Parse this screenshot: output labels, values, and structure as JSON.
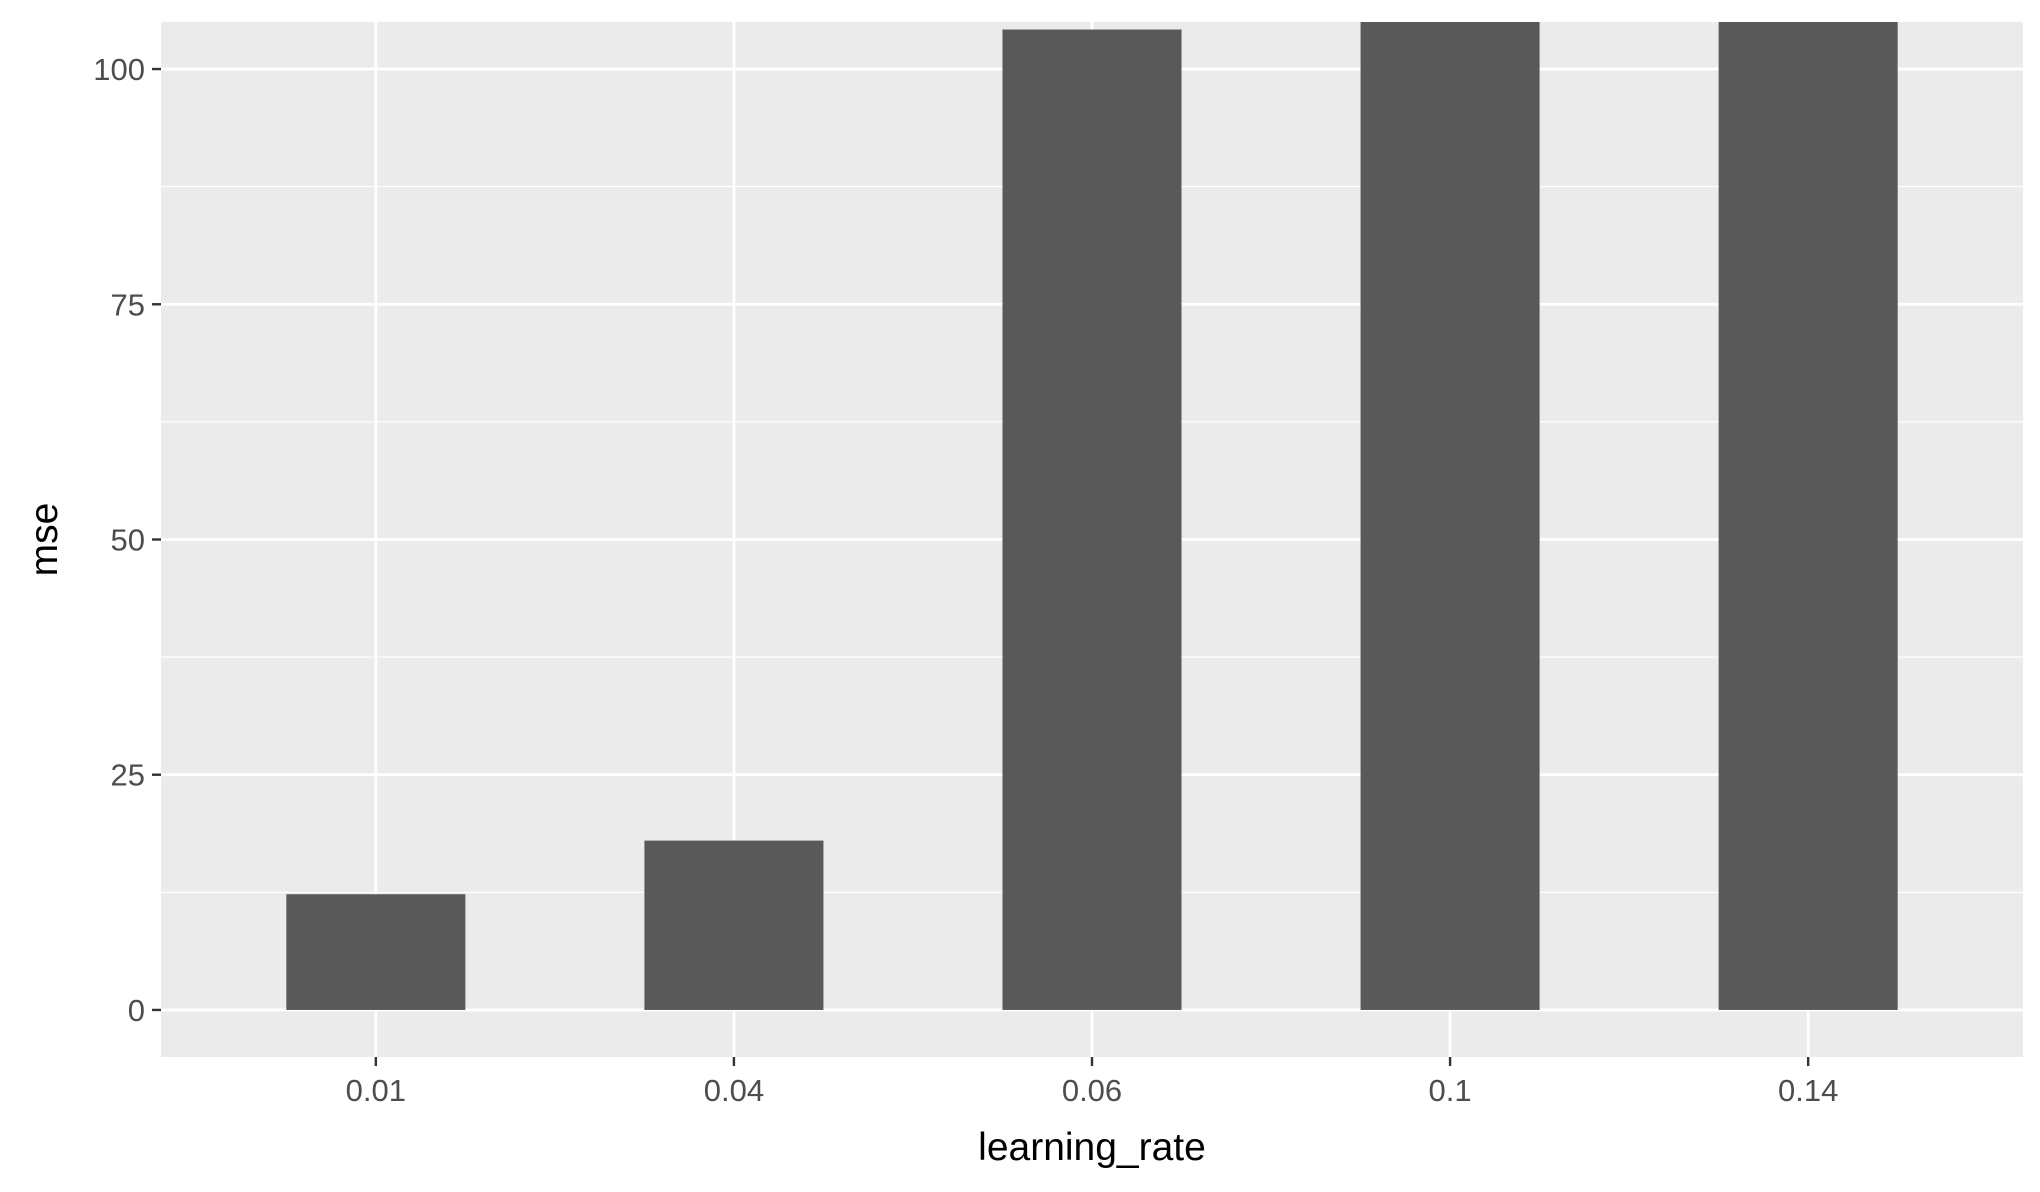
{
  "chart_data": {
    "type": "bar",
    "categories": [
      "0.01",
      "0.04",
      "0.06",
      "0.1",
      "0.14"
    ],
    "values": [
      12.3,
      18.0,
      104.2,
      106,
      106
    ],
    "xlabel": "learning_rate",
    "ylabel": "mse",
    "ylim": [
      -5,
      105
    ],
    "yticks": [
      0,
      25,
      50,
      75,
      100
    ],
    "ytick_labels": [
      "0",
      "25",
      "50",
      "75",
      "100"
    ],
    "grid": true,
    "legend": "none",
    "colors": {
      "bar": "#595959",
      "panel": "#ebebeb",
      "grid_major": "#ffffff",
      "grid_minor": "#ffffff",
      "tick_text": "#4d4d4d",
      "axis_title": "#000000",
      "tick_mark": "#333333"
    }
  }
}
